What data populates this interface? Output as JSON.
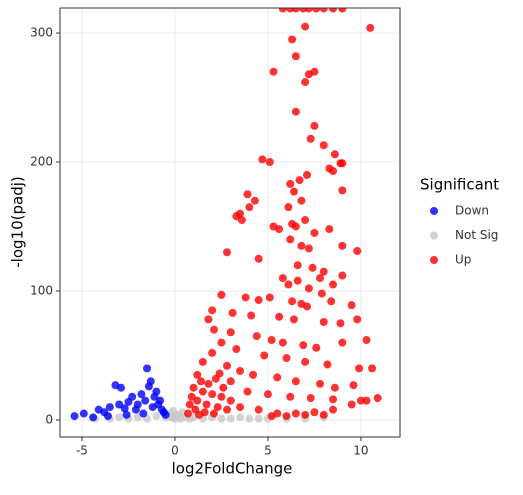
{
  "chart_data": {
    "type": "scatter",
    "x_label": "log2FoldChange",
    "y_label": "-log10(padj)",
    "legend_title": "Significant",
    "legend": "right",
    "grid": true,
    "xlim": [
      -6.18,
      12.1
    ],
    "ylim": [
      -13.2,
      319.4
    ],
    "xticks": [
      -5,
      0,
      5,
      10
    ],
    "yticks": [
      0,
      100,
      200,
      300
    ],
    "series": [
      {
        "name": "Down",
        "color": "#0000ff",
        "x": [
          -5.4,
          -4.9,
          -4.4,
          -4.1,
          -3.8,
          -3.5,
          -3.2,
          -2.9,
          -3.0,
          -2.7,
          -2.5,
          -2.3,
          -2.1,
          -2.0,
          -1.8,
          -1.6,
          -1.5,
          -1.4,
          -1.3,
          -1.2,
          -1.1,
          -1.0,
          -0.9,
          -0.8,
          -0.7,
          -0.6,
          -1.7,
          -2.6,
          -3.6,
          -0.5
        ],
        "y": [
          3,
          5,
          2,
          8,
          6,
          10,
          27,
          25,
          12,
          9,
          14,
          18,
          8,
          12,
          20,
          15,
          40,
          26,
          30,
          10,
          18,
          22,
          12,
          15,
          8,
          6,
          5,
          4,
          3,
          4
        ]
      },
      {
        "name": "Not Sig",
        "color": "#c8c8c8",
        "x": [
          -4.3,
          -3.5,
          -3.0,
          -2.5,
          -2.0,
          -1.5,
          -1.0,
          -0.5,
          -0.3,
          0.0,
          0.2,
          0.4,
          0.6,
          0.8,
          1.0,
          1.5,
          2.0,
          2.5,
          3.0,
          3.5,
          4.0,
          4.5,
          5.0,
          -0.1,
          0.1,
          0.3,
          -0.2,
          6.0,
          7.0,
          8.0
        ],
        "y": [
          1,
          1,
          2,
          1,
          2,
          1,
          3,
          2,
          5,
          1,
          3,
          6,
          2,
          1,
          2,
          1,
          2,
          1,
          1,
          2,
          1,
          1,
          1,
          7,
          4,
          1,
          2,
          1,
          1,
          2
        ]
      },
      {
        "name": "Up",
        "color": "#ff0000",
        "x": [
          5.8,
          6.2,
          6.5,
          6.9,
          7.2,
          7.6,
          8.0,
          8.5,
          9.0,
          10.5,
          6.3,
          7.0,
          6.5,
          5.3,
          7.2,
          7.0,
          7.5,
          6.5,
          7.5,
          7.3,
          8.0,
          8.6,
          9.0,
          8.9,
          8.3,
          8.5,
          4.7,
          5.1,
          9.0,
          7.1,
          6.7,
          6.2,
          6.4,
          3.9,
          4.3,
          4.0,
          3.5,
          3.3,
          6.8,
          6.1,
          3.6,
          5.3,
          5.6,
          6.3,
          7.0,
          6.2,
          6.5,
          6.8,
          7.2,
          7.5,
          8.3,
          9.0,
          9.8,
          2.8,
          4.5,
          6.6,
          7.4,
          8.0,
          7.8,
          8.5,
          9.0,
          5.8,
          6.1,
          6.6,
          7.2,
          7.9,
          3.8,
          2.5,
          4.5,
          5.1,
          6.3,
          6.8,
          7.1,
          8.4,
          9.5,
          2.0,
          3.1,
          4.1,
          5.6,
          6.4,
          8.0,
          8.9,
          9.8,
          1.8,
          2.1,
          3.0,
          4.4,
          5.2,
          5.8,
          6.9,
          7.6,
          9.0,
          10.3,
          2.5,
          3.3,
          2.0,
          4.8,
          6.0,
          7.0,
          8.2,
          9.9,
          10.6,
          1.5,
          2.8,
          3.5,
          4.2,
          5.5,
          6.5,
          7.8,
          8.6,
          9.6,
          1.2,
          2.2,
          3.0,
          1.8,
          2.6,
          3.9,
          5.0,
          6.2,
          7.3,
          8.5,
          10.3,
          10.9,
          1.0,
          1.5,
          2.0,
          2.5,
          3.0,
          1.2,
          1.7,
          2.3,
          0.8,
          1.1,
          1.6,
          2.1,
          2.8,
          3.5,
          4.5,
          5.5,
          6.5,
          7.5,
          8.5,
          9.5,
          10.0,
          0.7,
          1.3,
          0.9,
          1.4,
          2.4,
          5.2,
          6.0,
          7.0,
          8.0
        ],
        "y": [
          319,
          319,
          319,
          319,
          319,
          319,
          319,
          319,
          319,
          304,
          295,
          305,
          282,
          270,
          268,
          262,
          270,
          239,
          228,
          218,
          213,
          206,
          199,
          199,
          195,
          193,
          202,
          200,
          178,
          190,
          186,
          183,
          177,
          175,
          170,
          165,
          160,
          158,
          170,
          165,
          155,
          150,
          148,
          152,
          155,
          140,
          150,
          135,
          133,
          145,
          148,
          135,
          131,
          130,
          125,
          120,
          118,
          115,
          110,
          105,
          112,
          110,
          105,
          108,
          102,
          98,
          95,
          97,
          93,
          95,
          92,
          90,
          88,
          92,
          89,
          85,
          83,
          81,
          80,
          78,
          76,
          75,
          78,
          78,
          70,
          68,
          65,
          62,
          60,
          58,
          56,
          60,
          62,
          60,
          55,
          52,
          50,
          48,
          45,
          43,
          40,
          40,
          45,
          42,
          38,
          35,
          33,
          30,
          28,
          25,
          27,
          35,
          32,
          30,
          28,
          25,
          22,
          20,
          18,
          17,
          16,
          15,
          17,
          25,
          22,
          20,
          18,
          15,
          15,
          12,
          10,
          12,
          8,
          6,
          5,
          8,
          10,
          8,
          5,
          5,
          6,
          8,
          12,
          15,
          5,
          4,
          18,
          30,
          36,
          3,
          3,
          4,
          4
        ]
      }
    ]
  }
}
